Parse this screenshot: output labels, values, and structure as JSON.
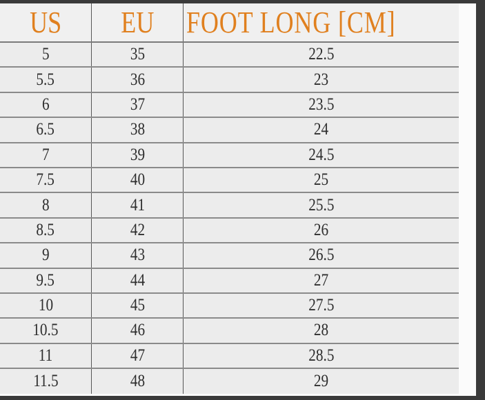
{
  "headers": {
    "us": "US",
    "eu": "EU",
    "foot": "FOOT LONG [CM]"
  },
  "rows": [
    {
      "us": "5",
      "eu": "35",
      "cm": "22.5"
    },
    {
      "us": "5.5",
      "eu": "36",
      "cm": "23"
    },
    {
      "us": "6",
      "eu": "37",
      "cm": "23.5"
    },
    {
      "us": "6.5",
      "eu": "38",
      "cm": "24"
    },
    {
      "us": "7",
      "eu": "39",
      "cm": "24.5"
    },
    {
      "us": "7.5",
      "eu": "40",
      "cm": "25"
    },
    {
      "us": "8",
      "eu": "41",
      "cm": "25.5"
    },
    {
      "us": "8.5",
      "eu": "42",
      "cm": "26"
    },
    {
      "us": "9",
      "eu": "43",
      "cm": "26.5"
    },
    {
      "us": "9.5",
      "eu": "44",
      "cm": "27"
    },
    {
      "us": "10",
      "eu": "45",
      "cm": "27.5"
    },
    {
      "us": "10.5",
      "eu": "46",
      "cm": "28"
    },
    {
      "us": "11",
      "eu": "47",
      "cm": "28.5"
    },
    {
      "us": "11.5",
      "eu": "48",
      "cm": "29"
    }
  ],
  "colors": {
    "header_text": "#e0801f",
    "body_text": "#2e2e2e"
  }
}
